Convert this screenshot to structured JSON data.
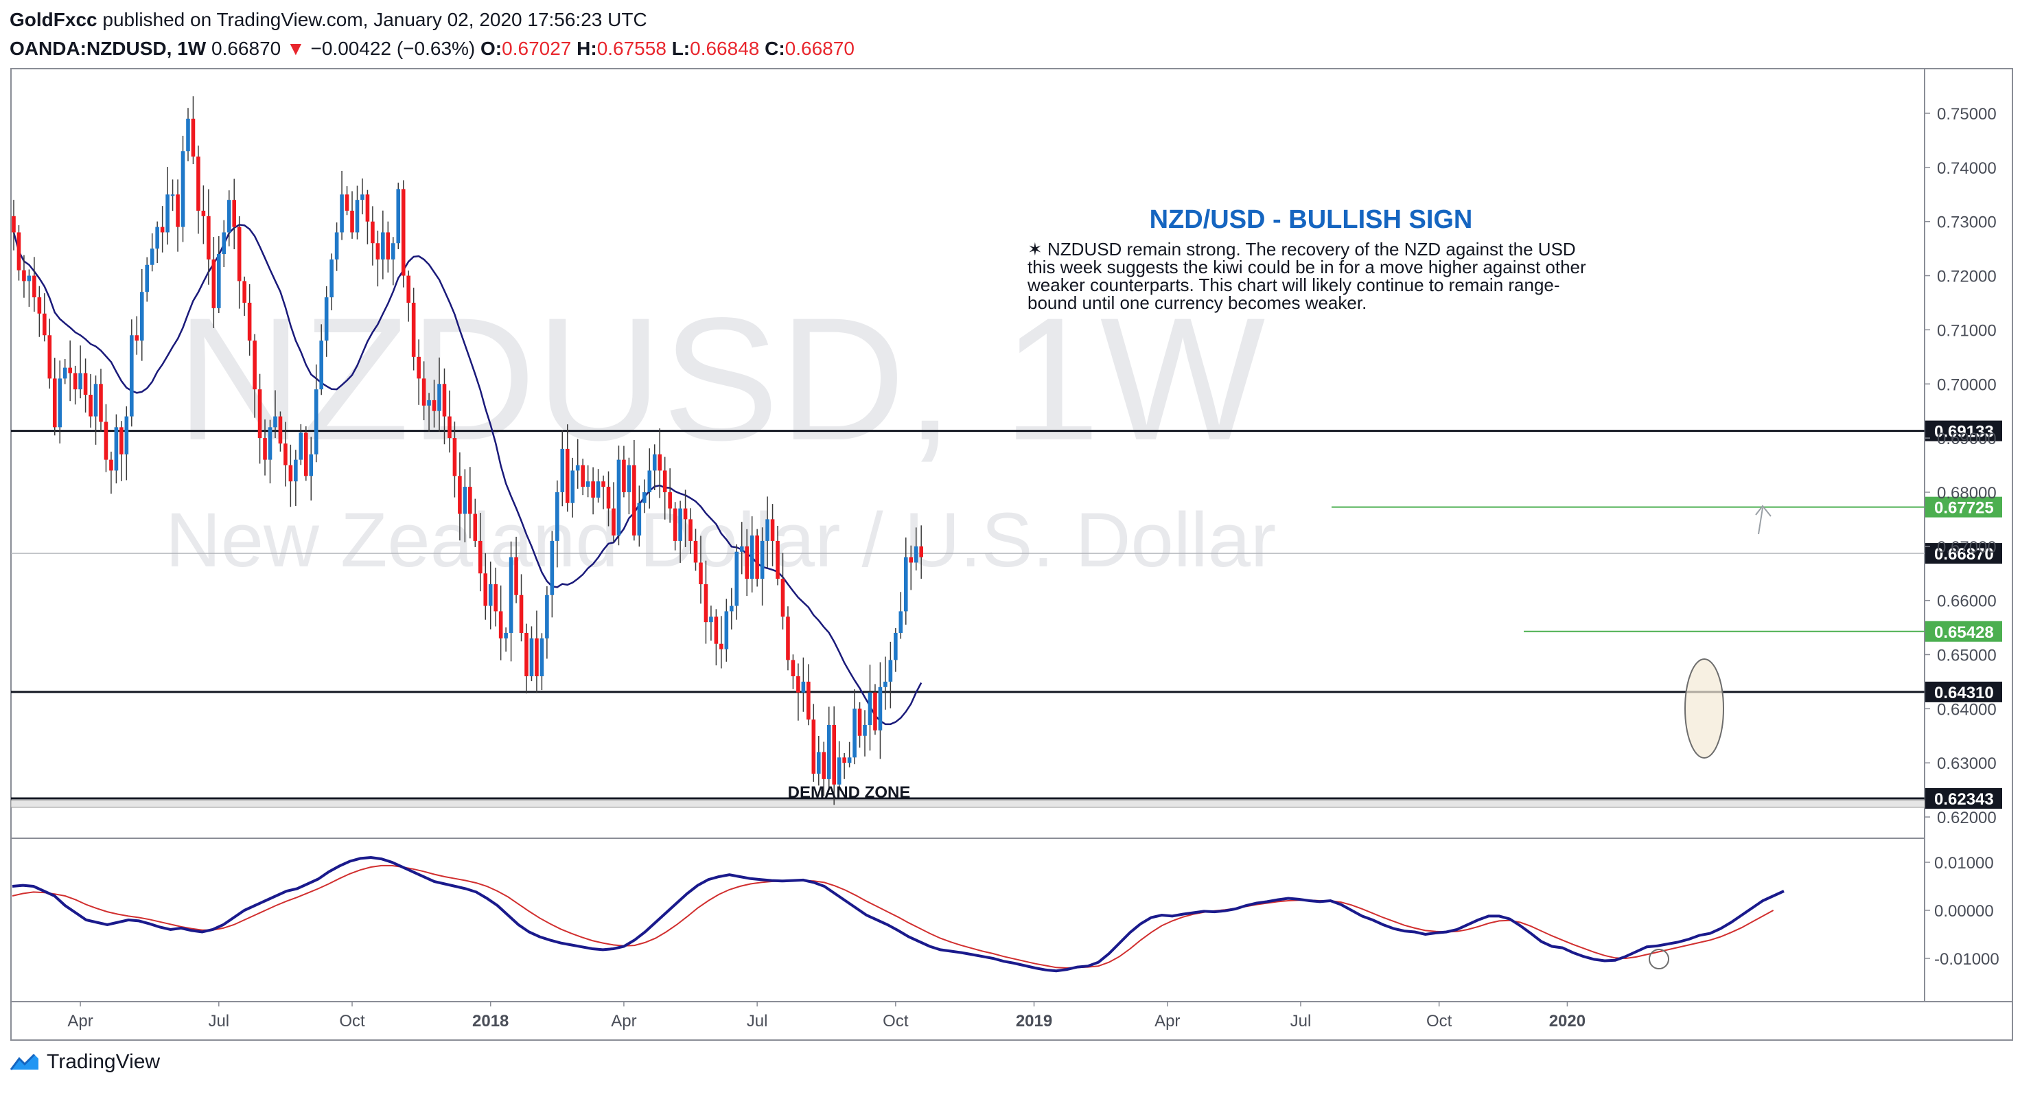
{
  "header": {
    "publisher": "GoldFxcc",
    "published_text": "published on TradingView.com, January 02, 2020 17:56:23 UTC",
    "symbol": "OANDA:NZDUSD, 1W",
    "last": "0.66870",
    "change": "−0.00422 (−0.63%)",
    "o_label": "O:",
    "o": "0.67027",
    "h_label": "H:",
    "h": "0.67558",
    "l_label": "L:",
    "l": "0.66848",
    "c_label": "C:",
    "c": "0.66870"
  },
  "watermark": {
    "symbol": "NZDUSD, 1W",
    "name": "New Zealand Dollar / U.S. Dollar"
  },
  "annotation": {
    "title": "NZD/USD - BULLISH SIGN",
    "lines": [
      "✶ NZDUSD remain strong. The recovery of the NZD against the USD",
      "this week suggests the kiwi could be in for a move higher against other",
      "weaker counterparts. This chart will likely continue to remain range-",
      "bound until one currency becomes weaker."
    ],
    "demand_zone": "DEMAND ZONE"
  },
  "footer": {
    "brand": "TradingView"
  },
  "colors": {
    "up": "#1f78c8",
    "down": "#f0181e",
    "ma": "#1a1a7a",
    "osc_fast": "#1a1a8c",
    "osc_slow": "#d12f2f",
    "level_green": "#4caf50",
    "level_black": "#131722"
  },
  "chart_data": [
    {
      "type": "candlestick",
      "timeframe": "1W",
      "price_ticks": [
        "0.75000",
        "0.74000",
        "0.73000",
        "0.72000",
        "0.71000",
        "0.70000",
        "0.69000",
        "0.68000",
        "0.67000",
        "0.66000",
        "0.65000",
        "0.64000",
        "0.63000",
        "0.62000"
      ],
      "x_ticks": [
        "Apr",
        "Jul",
        "Oct",
        "2018",
        "Apr",
        "Jul",
        "Oct",
        "2019",
        "Apr",
        "Jul",
        "Oct",
        "2020"
      ],
      "x_tick_weeks": [
        13,
        40,
        66,
        93,
        119,
        145,
        172,
        199,
        225,
        251,
        278,
        303
      ],
      "horizontal_levels": [
        {
          "price": 0.69133,
          "label": "0.69133",
          "style": "black"
        },
        {
          "price": 0.67725,
          "label": "0.67725",
          "style": "green"
        },
        {
          "price": 0.6687,
          "label": "0.66870",
          "style": "current"
        },
        {
          "price": 0.65428,
          "label": "0.65428",
          "style": "green"
        },
        {
          "price": 0.6431,
          "label": "0.64310",
          "style": "black"
        },
        {
          "price": 0.62343,
          "label": "0.62343",
          "style": "black"
        }
      ],
      "ma_period": 20,
      "candles_close": [
        0.728,
        0.721,
        0.719,
        0.72,
        0.716,
        0.713,
        0.709,
        0.701,
        0.692,
        0.701,
        0.703,
        0.702,
        0.699,
        0.702,
        0.698,
        0.694,
        0.7,
        0.693,
        0.686,
        0.684,
        0.692,
        0.687,
        0.694,
        0.709,
        0.708,
        0.717,
        0.722,
        0.725,
        0.729,
        0.728,
        0.735,
        0.735,
        0.729,
        0.743,
        0.749,
        0.742,
        0.732,
        0.731,
        0.723,
        0.714,
        0.724,
        0.728,
        0.734,
        0.729,
        0.719,
        0.715,
        0.708,
        0.699,
        0.69,
        0.686,
        0.692,
        0.694,
        0.689,
        0.685,
        0.682,
        0.686,
        0.691,
        0.683,
        0.687,
        0.699,
        0.708,
        0.716,
        0.723,
        0.728,
        0.735,
        0.732,
        0.728,
        0.734,
        0.735,
        0.73,
        0.726,
        0.723,
        0.728,
        0.723,
        0.726,
        0.736,
        0.72,
        0.715,
        0.705,
        0.701,
        0.696,
        0.697,
        0.695,
        0.7,
        0.694,
        0.69,
        0.683,
        0.676,
        0.681,
        0.676,
        0.671,
        0.665,
        0.659,
        0.663,
        0.658,
        0.653,
        0.654,
        0.668,
        0.661,
        0.654,
        0.646,
        0.653,
        0.646,
        0.653,
        0.661,
        0.671,
        0.68,
        0.688,
        0.678,
        0.684,
        0.685,
        0.681,
        0.682,
        0.679,
        0.682,
        0.681,
        0.677,
        0.672,
        0.686,
        0.68,
        0.685,
        0.672,
        0.678,
        0.68,
        0.684,
        0.687,
        0.684,
        0.68,
        0.677,
        0.671,
        0.677,
        0.675,
        0.671,
        0.667,
        0.663,
        0.656,
        0.657,
        0.652,
        0.651,
        0.658,
        0.659,
        0.669,
        0.67,
        0.664,
        0.672,
        0.664,
        0.671,
        0.675,
        0.671,
        0.664,
        0.657,
        0.649,
        0.646,
        0.643,
        0.645,
        0.638,
        0.628,
        0.632,
        0.627,
        0.637,
        0.626,
        0.631,
        0.63,
        0.631,
        0.64,
        0.635,
        0.637,
        0.643,
        0.636,
        0.644,
        0.645,
        0.649,
        0.654,
        0.658,
        0.668,
        0.667,
        0.67,
        0.668
      ],
      "oscillator": {
        "ticks": [
          "0.01000",
          "0.00000",
          "-0.01000"
        ],
        "fast": [
          0.005,
          0.0052,
          0.005,
          0.004,
          0.003,
          0.001,
          -0.0005,
          -0.002,
          -0.0025,
          -0.003,
          -0.0025,
          -0.002,
          -0.0022,
          -0.0028,
          -0.0035,
          -0.004,
          -0.0037,
          -0.0042,
          -0.0045,
          -0.004,
          -0.003,
          -0.0015,
          0.0,
          0.001,
          0.002,
          0.003,
          0.004,
          0.0045,
          0.0055,
          0.0065,
          0.008,
          0.0092,
          0.0102,
          0.0108,
          0.011,
          0.0107,
          0.01,
          0.009,
          0.008,
          0.007,
          0.006,
          0.0055,
          0.005,
          0.0045,
          0.0038,
          0.0025,
          0.001,
          -0.001,
          -0.003,
          -0.0045,
          -0.0055,
          -0.0062,
          -0.0068,
          -0.0072,
          -0.0076,
          -0.008,
          -0.0082,
          -0.008,
          -0.0075,
          -0.0062,
          -0.0045,
          -0.0025,
          -0.0005,
          0.0015,
          0.0035,
          0.0052,
          0.0064,
          0.007,
          0.0074,
          0.007,
          0.0066,
          0.0064,
          0.0062,
          0.0061,
          0.0062,
          0.0063,
          0.0058,
          0.005,
          0.0035,
          0.002,
          0.0005,
          -0.001,
          -0.002,
          -0.003,
          -0.0042,
          -0.0055,
          -0.0065,
          -0.0075,
          -0.0082,
          -0.0085,
          -0.0088,
          -0.0092,
          -0.0096,
          -0.01,
          -0.0106,
          -0.011,
          -0.0115,
          -0.012,
          -0.0124,
          -0.0126,
          -0.0123,
          -0.0118,
          -0.0116,
          -0.0108,
          -0.009,
          -0.0068,
          -0.0046,
          -0.0028,
          -0.0015,
          -0.001,
          -0.0012,
          -0.0008,
          -0.0005,
          -0.0002,
          -0.0003,
          -0.0001,
          0.0003,
          0.001,
          0.0015,
          0.0018,
          0.0022,
          0.0025,
          0.0023,
          0.002,
          0.0018,
          0.002,
          0.0012,
          0.0,
          -0.0012,
          -0.002,
          -0.003,
          -0.0038,
          -0.0043,
          -0.0045,
          -0.005,
          -0.0047,
          -0.0045,
          -0.004,
          -0.003,
          -0.002,
          -0.0012,
          -0.0012,
          -0.0018,
          -0.0032,
          -0.0048,
          -0.0065,
          -0.0075,
          -0.0078,
          -0.0088,
          -0.0096,
          -0.0102,
          -0.0105,
          -0.0104,
          -0.0096,
          -0.0086,
          -0.0076,
          -0.0074,
          -0.007,
          -0.0066,
          -0.006,
          -0.0052,
          -0.0048,
          -0.0038,
          -0.0025,
          -0.001,
          0.0005,
          0.002,
          0.003,
          0.004
        ],
        "slow": [
          0.003,
          0.0035,
          0.0038,
          0.0037,
          0.0034,
          0.003,
          0.0022,
          0.0012,
          0.0004,
          -0.0003,
          -0.0008,
          -0.0012,
          -0.0015,
          -0.0019,
          -0.0024,
          -0.0029,
          -0.0034,
          -0.0038,
          -0.0041,
          -0.0041,
          -0.0037,
          -0.003,
          -0.002,
          -0.001,
          0.0,
          0.001,
          0.0019,
          0.0027,
          0.0036,
          0.0045,
          0.0055,
          0.0066,
          0.0076,
          0.0084,
          0.009,
          0.0093,
          0.0093,
          0.009,
          0.0086,
          0.0081,
          0.0075,
          0.007,
          0.0066,
          0.0062,
          0.0057,
          0.005,
          0.004,
          0.0028,
          0.0013,
          -0.0002,
          -0.0016,
          -0.0028,
          -0.0039,
          -0.0048,
          -0.0056,
          -0.0063,
          -0.0068,
          -0.0072,
          -0.0074,
          -0.0073,
          -0.0067,
          -0.0058,
          -0.0045,
          -0.003,
          -0.0013,
          0.0005,
          0.002,
          0.0033,
          0.0043,
          0.005,
          0.0055,
          0.0058,
          0.006,
          0.0061,
          0.0061,
          0.0062,
          0.0061,
          0.0058,
          0.0051,
          0.0042,
          0.0031,
          0.0019,
          0.0008,
          -0.0003,
          -0.0014,
          -0.0026,
          -0.0037,
          -0.0048,
          -0.0058,
          -0.0066,
          -0.0073,
          -0.0079,
          -0.0085,
          -0.009,
          -0.0096,
          -0.0101,
          -0.0106,
          -0.0111,
          -0.0115,
          -0.0119,
          -0.012,
          -0.0119,
          -0.0118,
          -0.0116,
          -0.0108,
          -0.0096,
          -0.008,
          -0.0062,
          -0.0046,
          -0.0032,
          -0.0022,
          -0.0014,
          -0.0008,
          -0.0004,
          -0.0001,
          0.0001,
          0.0004,
          0.0008,
          0.0012,
          0.0015,
          0.0018,
          0.002,
          0.0021,
          0.0021,
          0.002,
          0.002,
          0.0017,
          0.0011,
          0.0003,
          -0.0006,
          -0.0015,
          -0.0023,
          -0.0031,
          -0.0037,
          -0.0042,
          -0.0044,
          -0.0045,
          -0.0044,
          -0.004,
          -0.0034,
          -0.0027,
          -0.0022,
          -0.0021,
          -0.0025,
          -0.0033,
          -0.0043,
          -0.0053,
          -0.0062,
          -0.0071,
          -0.0079,
          -0.0087,
          -0.0094,
          -0.0099,
          -0.01,
          -0.0097,
          -0.0092,
          -0.0087,
          -0.0082,
          -0.0077,
          -0.0072,
          -0.0067,
          -0.0062,
          -0.0055,
          -0.0046,
          -0.0036,
          -0.0024,
          -0.0012,
          0.0
        ]
      }
    }
  ]
}
